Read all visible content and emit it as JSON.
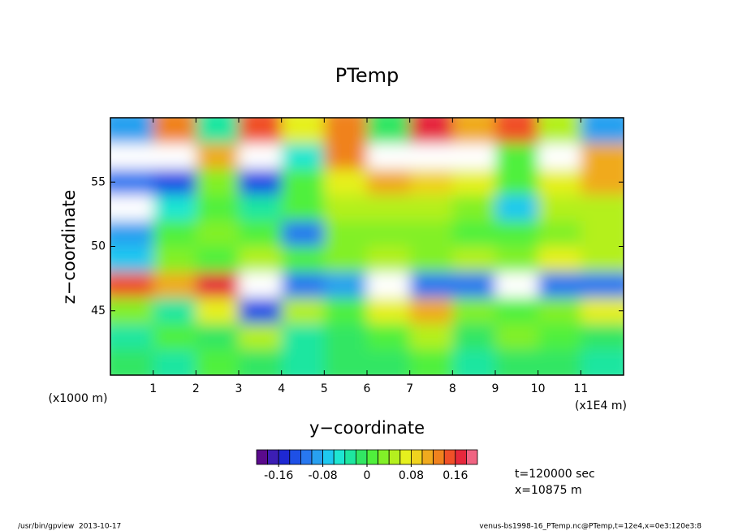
{
  "chart_data": {
    "type": "heatmap",
    "title": "PTemp",
    "xlabel": "y−coordinate",
    "ylabel": "z−coordinate",
    "xunit": "(x1E4 m)",
    "yunit": "(x1000 m)",
    "xlim": [
      0,
      12
    ],
    "ylim": [
      40,
      60
    ],
    "xticks": [
      1,
      2,
      3,
      4,
      5,
      6,
      7,
      8,
      9,
      10,
      11
    ],
    "yticks": [
      45,
      50,
      55
    ],
    "x": [
      0.5,
      1.5,
      2.5,
      3.5,
      4.5,
      5.5,
      6.5,
      7.5,
      8.5,
      9.5,
      10.5,
      11.5
    ],
    "y": [
      59,
      57,
      55,
      53,
      51,
      49,
      47,
      45,
      43,
      41
    ],
    "values": [
      [
        -0.1,
        0.12,
        -0.04,
        0.14,
        0.06,
        0.12,
        -0.02,
        0.16,
        0.1,
        0.14,
        0.04,
        -0.1
      ],
      [
        0.22,
        0.22,
        0.1,
        0.22,
        -0.06,
        0.12,
        0.22,
        0.22,
        0.22,
        0,
        0.22,
        0.1
      ],
      [
        -0.12,
        -0.14,
        0.02,
        -0.14,
        0,
        0.06,
        0.1,
        0.08,
        0.06,
        0,
        0.06,
        0.1
      ],
      [
        0.22,
        -0.06,
        0,
        -0.04,
        0,
        0.04,
        0.04,
        0.04,
        0.02,
        -0.08,
        0.04,
        0.04
      ],
      [
        -0.1,
        0,
        0.02,
        0,
        -0.12,
        0.02,
        0.02,
        0.02,
        0,
        0,
        0.02,
        0.04
      ],
      [
        -0.08,
        0.02,
        0,
        0.04,
        0,
        0.02,
        0.04,
        0.02,
        0.04,
        0.02,
        0.06,
        0.04
      ],
      [
        0.14,
        0.1,
        0.16,
        0.22,
        -0.12,
        -0.1,
        0.22,
        -0.12,
        -0.12,
        0.22,
        -0.12,
        -0.12
      ],
      [
        0.02,
        -0.04,
        0.06,
        -0.14,
        0.04,
        0,
        0.06,
        0.1,
        0.02,
        0,
        0.02,
        0.06
      ],
      [
        -0.04,
        0,
        -0.02,
        0.04,
        -0.04,
        -0.02,
        0,
        0.04,
        -0.02,
        0.02,
        0,
        -0.02
      ],
      [
        -0.02,
        -0.04,
        0,
        -0.02,
        -0.04,
        -0.02,
        -0.02,
        0,
        -0.04,
        -0.02,
        -0.02,
        -0.04
      ]
    ],
    "levels": [
      -0.2,
      -0.18,
      -0.16,
      -0.14,
      -0.12,
      -0.1,
      -0.08,
      -0.06,
      -0.04,
      -0.02,
      0,
      0.02,
      0.04,
      0.06,
      0.08,
      0.1,
      0.12,
      0.14,
      0.16,
      0.18,
      0.2
    ],
    "colors": [
      "#5a0a8c",
      "#3c1eb4",
      "#1e28d2",
      "#1e50e6",
      "#2878f0",
      "#28a0f0",
      "#1ec8f0",
      "#1ee6d2",
      "#1ee6a0",
      "#32e664",
      "#50f03c",
      "#82f028",
      "#b4f01e",
      "#e6f01e",
      "#f0d21e",
      "#f0aa1e",
      "#f0821e",
      "#f05028",
      "#e6283c",
      "#f06482"
    ],
    "colorbar_ticks": [
      -0.16,
      -0.08,
      0,
      0.08,
      0.16
    ],
    "annotations": [
      "t=120000 sec",
      "x=10875 m"
    ],
    "footer_left": "/usr/bin/gpview  2013-10-17",
    "footer_right": "venus-bs1998-16_PTemp.nc@PTemp,t=12e4,x=0e3:120e3:8"
  }
}
